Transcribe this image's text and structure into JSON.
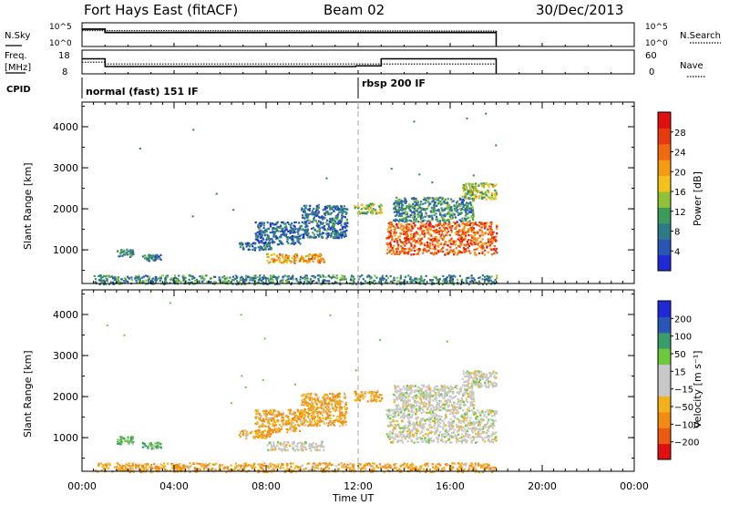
{
  "header": {
    "station": "Fort Hays East (fitACF)",
    "beam": "Beam 02",
    "date": "30/Dec/2013"
  },
  "strips": {
    "nsky_label": "N.Sky",
    "nsearch_label": "N.Search",
    "freq_label": "Freq.",
    "freq_unit": "[MHz]",
    "nave_label": "Nave",
    "cpid_label": "CPID",
    "nsky_ticks": [
      "10^5",
      "10^0"
    ],
    "nsearch_ticks": [
      "10^5",
      "10^0"
    ],
    "freq_ticks": [
      "18",
      "8"
    ],
    "nave_ticks": [
      "60",
      "0"
    ],
    "cpid_modes": [
      {
        "label": "normal (fast) 151 IF",
        "start_hour": 0,
        "end_hour": 12
      },
      {
        "label": "rbsp 200 IF",
        "start_hour": 12,
        "end_hour": 18
      }
    ]
  },
  "panels": {
    "ylabel": "Slant Range [km]",
    "xlabel": "Time UT",
    "y_ticks": [
      "1000",
      "2000",
      "3000",
      "4000"
    ],
    "x_ticks": [
      "00:00",
      "04:00",
      "08:00",
      "12:00",
      "16:00",
      "20:00",
      "00:00"
    ]
  },
  "colorbars": {
    "power": {
      "label": "Power [dB]",
      "ticks": [
        "4",
        "8",
        "12",
        "16",
        "20",
        "24",
        "28"
      ],
      "colors": [
        "#1f2ad6",
        "#2a56b8",
        "#2f7a88",
        "#3c9a5a",
        "#8fc23a",
        "#f2c21a",
        "#f59a12",
        "#ef6a10",
        "#e83a10",
        "#e01010"
      ]
    },
    "velocity": {
      "label": "Velocity [m s⁻¹]",
      "ticks": [
        "200",
        "100",
        "50",
        "15",
        "−15",
        "−50",
        "−100",
        "−200"
      ],
      "colors": [
        "#1f2ad6",
        "#2a56b8",
        "#3a9c6a",
        "#6ec83c",
        "#c8c8c8",
        "#c8c8c8",
        "#f3b21c",
        "#f38a14",
        "#ea5a12",
        "#e01010"
      ]
    }
  },
  "chart_data": [
    {
      "type": "line",
      "title": "",
      "xlabel": "",
      "ylabel": "N.Sky",
      "xlim": [
        0,
        24
      ],
      "series": [
        {
          "name": "N.Sky",
          "x": [
            0,
            1,
            1,
            18,
            18
          ],
          "values": [
            4.5,
            4.5,
            3.6,
            3.6,
            null
          ]
        },
        {
          "name": "N.Search",
          "x": [
            0,
            18
          ],
          "values": [
            4.1,
            4.0
          ]
        }
      ]
    },
    {
      "type": "line",
      "title": "",
      "xlabel": "",
      "ylabel": "Freq. [MHz]",
      "xlim": [
        0,
        24
      ],
      "ylim": [
        8,
        18
      ],
      "series": [
        {
          "name": "Freq.",
          "x": [
            0,
            1,
            1,
            11.9,
            11.9,
            13,
            13,
            18
          ],
          "values": [
            16.5,
            16.5,
            11.5,
            11.5,
            12,
            12,
            16.5,
            16.5
          ]
        },
        {
          "name": "Nave",
          "x": [
            0,
            1,
            1,
            18
          ],
          "values": [
            38,
            38,
            31,
            31
          ]
        }
      ]
    },
    {
      "type": "heatmap",
      "title": "",
      "xlabel": "Time UT",
      "ylabel": "Slant Range [km]",
      "xlim": [
        0,
        24
      ],
      "ylim": [
        180,
        4600
      ],
      "colorbar": "Power [dB]",
      "regions": [
        {
          "t0": 1.5,
          "t1": 2.2,
          "r0": 850,
          "r1": 1050,
          "value": 8
        },
        {
          "t0": 2.6,
          "t1": 3.4,
          "r0": 750,
          "r1": 900,
          "value": 6
        },
        {
          "t0": 6.8,
          "t1": 8.2,
          "r0": 1000,
          "r1": 1200,
          "value": 6
        },
        {
          "t0": 8.0,
          "t1": 10.5,
          "r0": 700,
          "r1": 920,
          "value": 20
        },
        {
          "t0": 7.5,
          "t1": 9.5,
          "r0": 1150,
          "r1": 1700,
          "value": 5
        },
        {
          "t0": 9.5,
          "t1": 11.5,
          "r0": 1300,
          "r1": 2100,
          "value": 6
        },
        {
          "t0": 11.8,
          "t1": 13.0,
          "r0": 1900,
          "r1": 2150,
          "value": 14
        },
        {
          "t0": 13.2,
          "t1": 18.0,
          "r0": 900,
          "r1": 1700,
          "value": 24
        },
        {
          "t0": 13.5,
          "t1": 17.0,
          "r0": 1700,
          "r1": 2300,
          "value": 8
        },
        {
          "t0": 16.5,
          "t1": 18.0,
          "r0": 2250,
          "r1": 2650,
          "value": 14
        },
        {
          "t0": 0.5,
          "t1": 18.0,
          "r0": 180,
          "r1": 400,
          "value": 8
        }
      ]
    },
    {
      "type": "heatmap",
      "title": "",
      "xlabel": "Time UT",
      "ylabel": "Slant Range [km]",
      "xlim": [
        0,
        24
      ],
      "ylim": [
        180,
        4600
      ],
      "colorbar": "Velocity [m s⁻¹]",
      "regions": [
        {
          "t0": 1.5,
          "t1": 2.2,
          "r0": 850,
          "r1": 1050,
          "value": 30
        },
        {
          "t0": 2.6,
          "t1": 3.4,
          "r0": 750,
          "r1": 900,
          "value": 30
        },
        {
          "t0": 6.8,
          "t1": 8.2,
          "r0": 1000,
          "r1": 1200,
          "value": -30
        },
        {
          "t0": 8.0,
          "t1": 10.5,
          "r0": 700,
          "r1": 920,
          "value": 0
        },
        {
          "t0": 7.5,
          "t1": 9.5,
          "r0": 1150,
          "r1": 1700,
          "value": -30
        },
        {
          "t0": 9.5,
          "t1": 11.5,
          "r0": 1300,
          "r1": 2100,
          "value": -30
        },
        {
          "t0": 11.8,
          "t1": 13.0,
          "r0": 1900,
          "r1": 2150,
          "value": -30
        },
        {
          "t0": 13.2,
          "t1": 18.0,
          "r0": 900,
          "r1": 1700,
          "value": 0
        },
        {
          "t0": 13.5,
          "t1": 17.0,
          "r0": 1700,
          "r1": 2300,
          "value": 0
        },
        {
          "t0": 16.5,
          "t1": 18.0,
          "r0": 2250,
          "r1": 2650,
          "value": 0
        },
        {
          "t0": 0.5,
          "t1": 18.0,
          "r0": 180,
          "r1": 400,
          "value": -30
        }
      ]
    }
  ]
}
